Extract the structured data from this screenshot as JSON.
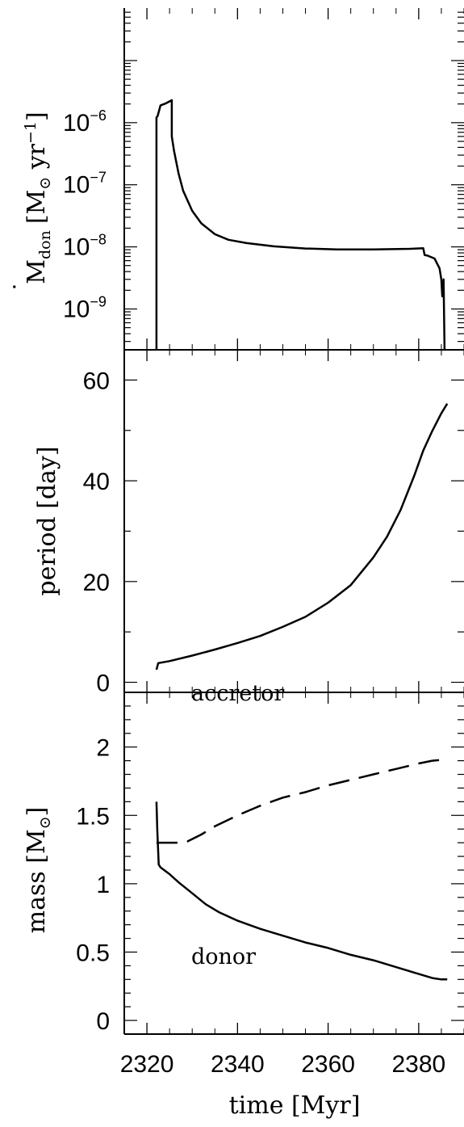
{
  "chart_data": [
    {
      "type": "line",
      "panel": "mass-transfer-rate",
      "ylabel_parts": {
        "dot": "˙",
        "main": "M",
        "sub": "don",
        "bracket_open": "[M",
        "sun": "⊙",
        "mid": " yr",
        "exp": "−1",
        "bracket_close": "]"
      },
      "yscale": "log",
      "ylim": [
        2.2e-10,
        7e-05
      ],
      "xlim": [
        2315,
        2390
      ],
      "tick_labels": [
        {
          "value": 1e-06,
          "base": "10",
          "exp": "−6"
        },
        {
          "value": 1e-07,
          "base": "10",
          "exp": "−7"
        },
        {
          "value": 1e-08,
          "base": "10",
          "exp": "−8"
        },
        {
          "value": 1e-09,
          "base": "10",
          "exp": "−9"
        }
      ],
      "series": [
        {
          "style": "solid",
          "x": [
            2322.1,
            2322.1,
            2322.4,
            2323.0,
            2324.2,
            2325.5,
            2325.5,
            2326.0,
            2327.0,
            2328.0,
            2330.0,
            2332.0,
            2335.0,
            2338.0,
            2342.0,
            2348.0,
            2355.0,
            2362.0,
            2370.0,
            2378.0,
            2381.0,
            2381.3,
            2382.0,
            2383.5,
            2384.6,
            2385.0,
            2385.2,
            2385.5,
            2385.7
          ],
          "y": [
            2.2e-10,
            1.2e-06,
            1.3e-06,
            1.9e-06,
            2.05e-06,
            2.3e-06,
            6e-07,
            3.5e-07,
            1.5e-07,
            8e-08,
            3.8e-08,
            2.4e-08,
            1.6e-08,
            1.3e-08,
            1.15e-08,
            1.02e-08,
            9.4e-09,
            9.1e-09,
            9.1e-09,
            9.3e-09,
            9.5e-09,
            7.4e-09,
            7.2e-09,
            6.5e-09,
            4.5e-09,
            3e-09,
            1.6e-09,
            3e-09,
            2.2e-10
          ]
        }
      ]
    },
    {
      "type": "line",
      "panel": "period",
      "ylabel": "period [day]",
      "ylim": [
        -2,
        66
      ],
      "xlim": [
        2315,
        2390
      ],
      "yticks": [
        0,
        20,
        40,
        60
      ],
      "tick_labels": [
        "0",
        "20",
        "40",
        "60"
      ],
      "series": [
        {
          "style": "solid",
          "x": [
            2322.1,
            2322.5,
            2325,
            2330,
            2335,
            2340,
            2345,
            2350,
            2355,
            2360,
            2365,
            2370,
            2373,
            2376,
            2379,
            2381,
            2383,
            2385,
            2386.3
          ],
          "y": [
            2.5,
            3.8,
            4.2,
            5.3,
            6.5,
            7.8,
            9.2,
            11.0,
            13.0,
            15.8,
            19.3,
            24.8,
            28.9,
            34.2,
            41.0,
            46.0,
            49.9,
            53.4,
            55.3
          ]
        }
      ]
    },
    {
      "type": "line",
      "panel": "mass",
      "ylabel_parts": {
        "main": "mass [M",
        "sun": "⊙",
        "close": "]"
      },
      "ylim": [
        -0.1,
        2.4
      ],
      "xlim": [
        2315,
        2390
      ],
      "xlabel": "time [Myr]",
      "yticks": [
        0,
        0.5,
        1,
        1.5,
        2
      ],
      "tick_labels": [
        "0",
        "0.5",
        "1",
        "1.5",
        "2"
      ],
      "xtick_labels": [
        "2320",
        "2340",
        "2360",
        "2380"
      ],
      "annotations": [
        {
          "text": "accretor",
          "x": 2325.5,
          "y": 1.9
        },
        {
          "text": "donor",
          "x": 2325.5,
          "y": 0.47
        }
      ],
      "series": [
        {
          "name": "accretor",
          "style": "dashed",
          "x": [
            2322.1,
            2325,
            2327,
            2329,
            2332,
            2335,
            2340,
            2345,
            2350,
            2355,
            2360,
            2365,
            2370,
            2375,
            2380,
            2383,
            2386.3
          ],
          "y": [
            1.3,
            1.3,
            1.3,
            1.31,
            1.36,
            1.42,
            1.5,
            1.57,
            1.63,
            1.67,
            1.72,
            1.76,
            1.8,
            1.84,
            1.88,
            1.9,
            1.91
          ]
        },
        {
          "name": "donor",
          "style": "solid",
          "x": [
            2322.1,
            2322.3,
            2322.6,
            2323,
            2325,
            2327,
            2330,
            2333,
            2336,
            2340,
            2345,
            2350,
            2355,
            2360,
            2365,
            2370,
            2375,
            2380,
            2383,
            2385,
            2386.3
          ],
          "y": [
            1.6,
            1.38,
            1.14,
            1.12,
            1.07,
            1.01,
            0.93,
            0.85,
            0.79,
            0.73,
            0.67,
            0.62,
            0.57,
            0.53,
            0.48,
            0.44,
            0.39,
            0.34,
            0.31,
            0.3,
            0.3
          ]
        }
      ]
    }
  ]
}
